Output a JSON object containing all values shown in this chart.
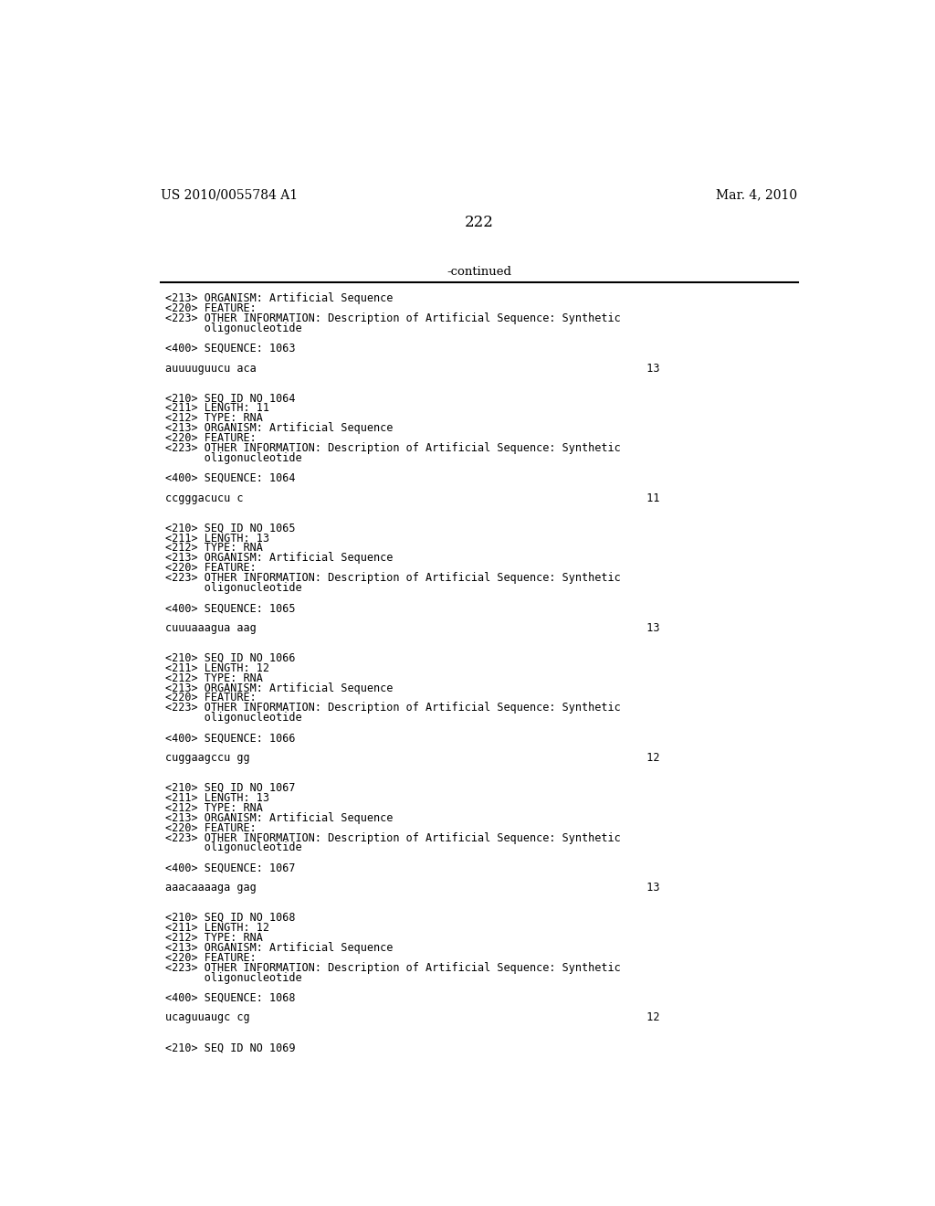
{
  "left_header": "US 2010/0055784 A1",
  "right_header": "Mar. 4, 2010",
  "page_number": "222",
  "continued_text": "-continued",
  "background_color": "#ffffff",
  "text_color": "#000000",
  "font_size": 8.5,
  "header_font_size": 10,
  "page_num_font_size": 12,
  "content_lines": [
    "<213> ORGANISM: Artificial Sequence",
    "<220> FEATURE:",
    "<223> OTHER INFORMATION: Description of Artificial Sequence: Synthetic",
    "      oligonucleotide",
    "",
    "<400> SEQUENCE: 1063",
    "",
    "auuuuguucu aca                                                            13",
    "",
    "",
    "<210> SEQ ID NO 1064",
    "<211> LENGTH: 11",
    "<212> TYPE: RNA",
    "<213> ORGANISM: Artificial Sequence",
    "<220> FEATURE:",
    "<223> OTHER INFORMATION: Description of Artificial Sequence: Synthetic",
    "      oligonucleotide",
    "",
    "<400> SEQUENCE: 1064",
    "",
    "ccgggacucu c                                                              11",
    "",
    "",
    "<210> SEQ ID NO 1065",
    "<211> LENGTH: 13",
    "<212> TYPE: RNA",
    "<213> ORGANISM: Artificial Sequence",
    "<220> FEATURE:",
    "<223> OTHER INFORMATION: Description of Artificial Sequence: Synthetic",
    "      oligonucleotide",
    "",
    "<400> SEQUENCE: 1065",
    "",
    "cuuuaaagua aag                                                            13",
    "",
    "",
    "<210> SEQ ID NO 1066",
    "<211> LENGTH: 12",
    "<212> TYPE: RNA",
    "<213> ORGANISM: Artificial Sequence",
    "<220> FEATURE:",
    "<223> OTHER INFORMATION: Description of Artificial Sequence: Synthetic",
    "      oligonucleotide",
    "",
    "<400> SEQUENCE: 1066",
    "",
    "cuggaagccu gg                                                             12",
    "",
    "",
    "<210> SEQ ID NO 1067",
    "<211> LENGTH: 13",
    "<212> TYPE: RNA",
    "<213> ORGANISM: Artificial Sequence",
    "<220> FEATURE:",
    "<223> OTHER INFORMATION: Description of Artificial Sequence: Synthetic",
    "      oligonucleotide",
    "",
    "<400> SEQUENCE: 1067",
    "",
    "aaacaaaaga gag                                                            13",
    "",
    "",
    "<210> SEQ ID NO 1068",
    "<211> LENGTH: 12",
    "<212> TYPE: RNA",
    "<213> ORGANISM: Artificial Sequence",
    "<220> FEATURE:",
    "<223> OTHER INFORMATION: Description of Artificial Sequence: Synthetic",
    "      oligonucleotide",
    "",
    "<400> SEQUENCE: 1068",
    "",
    "ucaguuaugc cg                                                             12",
    "",
    "",
    "<210> SEQ ID NO 1069"
  ]
}
